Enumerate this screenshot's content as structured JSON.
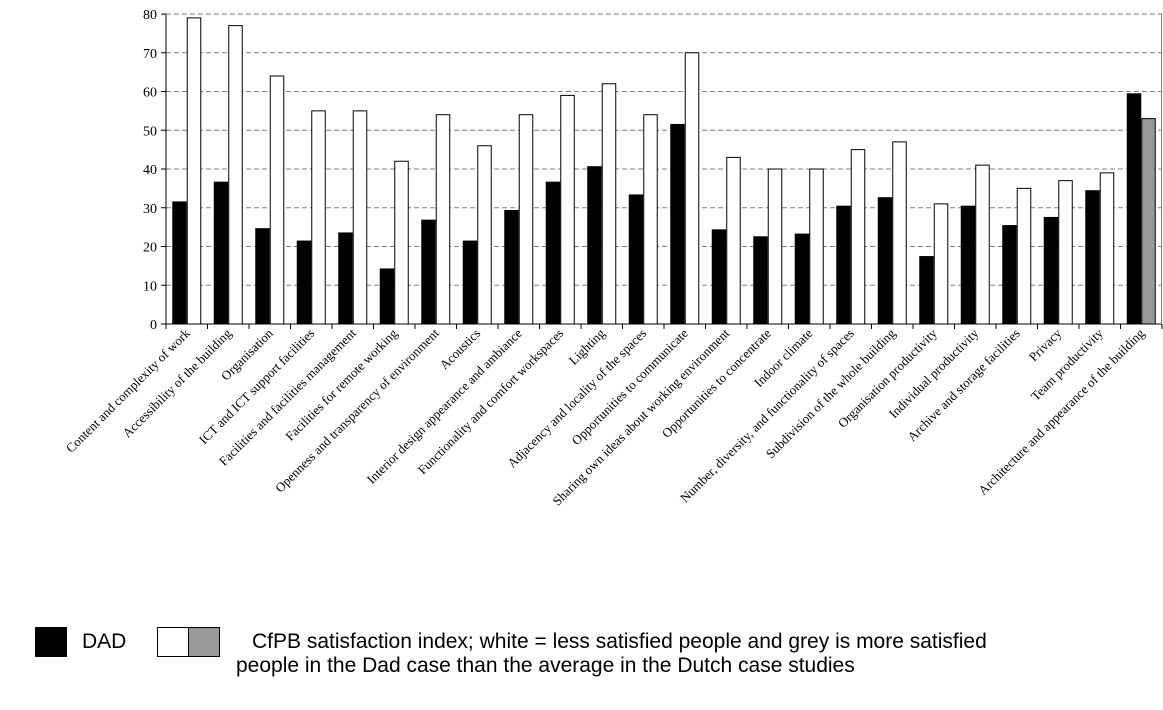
{
  "chart_data": {
    "type": "bar",
    "title": "",
    "xlabel": "",
    "ylabel": "",
    "ylim": [
      0,
      80
    ],
    "yticks": [
      0,
      10,
      20,
      30,
      40,
      50,
      60,
      70,
      80
    ],
    "grid": true,
    "categories": [
      "Content and complexity of work",
      "Accessibility of the building",
      "Organisation",
      "ICT and ICT support facilities",
      "Facilities and facilities management",
      "Facilities for remote working",
      "Openness and transparency of environment",
      "Acoustics",
      "Interior design appearance and ambiance",
      "Functionality and comfort workspaces",
      "Lighting",
      "Adjacency and locality of the spaces",
      "Opportunities to communicate",
      "Sharing own ideas about working environment",
      "Opportunities to concentrate",
      "Indoor climate",
      "Number, diversity, and functionality of spaces",
      "Subdivision of the whole building",
      "Organisation productivity",
      "Individual productivity",
      "Archive and storage facilities",
      "Privacy",
      "Team productivity",
      "Architecture and appearance of the building"
    ],
    "series": [
      {
        "name": "DAD",
        "color": "#000000",
        "values": [
          31.5,
          36.6,
          24.6,
          21.4,
          23.5,
          14.2,
          26.8,
          21.4,
          29.3,
          36.6,
          40.6,
          33.3,
          51.5,
          24.3,
          22.5,
          23.2,
          30.4,
          32.6,
          17.4,
          30.4,
          25.4,
          27.5,
          34.4,
          59.4
        ]
      },
      {
        "name": "CfPB satisfaction index",
        "color": "#ffffff",
        "highlight_color": "#999999",
        "highlight_index": 23,
        "values": [
          79,
          77,
          64,
          55,
          55,
          42,
          54,
          46,
          54,
          59,
          62,
          54,
          70,
          43,
          40,
          40,
          45,
          47,
          31,
          41,
          35,
          37,
          39,
          53
        ]
      }
    ],
    "legend": {
      "position": "bottom",
      "dad_label": "DAD",
      "cfpb_line1": "CfPB satisfaction index; white = less satisfied people and grey is more satisfied",
      "cfpb_line2": "people in the Dad case than the average in the Dutch case studies",
      "swatch_colors": [
        "#000000",
        "#ffffff",
        "#999999"
      ]
    }
  }
}
